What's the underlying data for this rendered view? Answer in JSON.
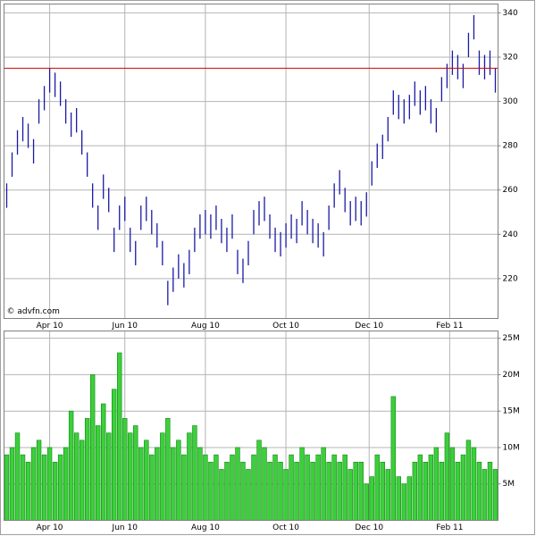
{
  "chart_data": [
    {
      "type": "hilo",
      "annotation": "© advfn.com",
      "color": "#1a1aa6",
      "reference_line": 315,
      "reference_color": "#d40000",
      "x": [
        0,
        1,
        2,
        3,
        4,
        5,
        6,
        7,
        8,
        9,
        10,
        11,
        12,
        13,
        14,
        15,
        16,
        17,
        18,
        19,
        20,
        21,
        22,
        23,
        24,
        25,
        26,
        27,
        28,
        29,
        30,
        31,
        32,
        33,
        34,
        35,
        36,
        37,
        38,
        39,
        40,
        41,
        42,
        43,
        44,
        45,
        46,
        47,
        48,
        49,
        50,
        51,
        52,
        53,
        54,
        55,
        56,
        57,
        58,
        59,
        60,
        61,
        62,
        63,
        64,
        65,
        66,
        67,
        68,
        69,
        70,
        71,
        72,
        73,
        74,
        75,
        76,
        77,
        78,
        79,
        80,
        81,
        82,
        83,
        84,
        85,
        86,
        87,
        88,
        89,
        90,
        91
      ],
      "high": [
        263,
        277,
        287,
        293,
        290,
        283,
        301,
        307,
        315,
        313,
        309,
        301,
        295,
        297,
        287,
        277,
        263,
        253,
        267,
        261,
        243,
        253,
        257,
        243,
        237,
        253,
        257,
        251,
        245,
        237,
        219,
        225,
        231,
        227,
        233,
        243,
        249,
        251,
        249,
        253,
        247,
        243,
        249,
        233,
        229,
        237,
        251,
        255,
        257,
        249,
        243,
        241,
        245,
        249,
        247,
        255,
        251,
        247,
        245,
        241,
        253,
        263,
        269,
        261,
        255,
        257,
        255,
        259,
        273,
        281,
        285,
        293,
        305,
        303,
        301,
        303,
        309,
        305,
        307,
        301,
        297,
        311,
        317,
        323,
        321,
        317,
        331,
        339,
        323,
        321,
        323,
        315
      ],
      "low": [
        252,
        266,
        276,
        282,
        279,
        272,
        290,
        296,
        304,
        302,
        298,
        290,
        284,
        286,
        276,
        266,
        252,
        242,
        256,
        250,
        232,
        242,
        246,
        232,
        226,
        242,
        246,
        240,
        234,
        226,
        208,
        214,
        220,
        216,
        222,
        232,
        238,
        240,
        238,
        242,
        236,
        232,
        238,
        222,
        218,
        226,
        240,
        244,
        246,
        238,
        232,
        230,
        234,
        238,
        236,
        244,
        240,
        236,
        234,
        230,
        242,
        252,
        258,
        250,
        244,
        246,
        244,
        248,
        262,
        270,
        274,
        282,
        294,
        292,
        290,
        292,
        298,
        294,
        296,
        290,
        286,
        300,
        306,
        312,
        310,
        306,
        320,
        328,
        312,
        310,
        312,
        304
      ],
      "xlim": [
        -0.5,
        91.5
      ],
      "xticks": [
        {
          "value": 8,
          "label": "Apr 10"
        },
        {
          "value": 22,
          "label": "Jun 10"
        },
        {
          "value": 37,
          "label": "Aug 10"
        },
        {
          "value": 52,
          "label": "Oct 10"
        },
        {
          "value": 67.5,
          "label": "Dec 10"
        },
        {
          "value": 82.5,
          "label": "Feb 11"
        }
      ],
      "ylim": [
        202,
        344
      ],
      "yticks": [
        220,
        240,
        260,
        280,
        300,
        320,
        340
      ],
      "grid": true
    },
    {
      "type": "bar",
      "color": "#3ccf3c",
      "edge_color": "#118811",
      "x": [
        0,
        1,
        2,
        3,
        4,
        5,
        6,
        7,
        8,
        9,
        10,
        11,
        12,
        13,
        14,
        15,
        16,
        17,
        18,
        19,
        20,
        21,
        22,
        23,
        24,
        25,
        26,
        27,
        28,
        29,
        30,
        31,
        32,
        33,
        34,
        35,
        36,
        37,
        38,
        39,
        40,
        41,
        42,
        43,
        44,
        45,
        46,
        47,
        48,
        49,
        50,
        51,
        52,
        53,
        54,
        55,
        56,
        57,
        58,
        59,
        60,
        61,
        62,
        63,
        64,
        65,
        66,
        67,
        68,
        69,
        70,
        71,
        72,
        73,
        74,
        75,
        76,
        77,
        78,
        79,
        80,
        81,
        82,
        83,
        84,
        85,
        86,
        87,
        88,
        89,
        90,
        91
      ],
      "values": [
        9,
        10,
        12,
        9,
        8,
        10,
        11,
        9,
        10,
        8,
        9,
        10,
        15,
        12,
        11,
        14,
        20,
        13,
        16,
        12,
        18,
        23,
        14,
        12,
        13,
        10,
        11,
        9,
        10,
        12,
        14,
        10,
        11,
        9,
        12,
        13,
        10,
        9,
        8,
        9,
        7,
        8,
        9,
        10,
        8,
        7,
        9,
        11,
        10,
        8,
        9,
        8,
        7,
        9,
        8,
        10,
        9,
        8,
        9,
        10,
        8,
        9,
        8,
        9,
        7,
        8,
        8,
        5,
        6,
        9,
        8,
        7,
        17,
        6,
        5,
        6,
        8,
        9,
        8,
        9,
        10,
        8,
        12,
        10,
        8,
        9,
        11,
        10,
        8,
        7,
        8,
        7
      ],
      "xlim": [
        -0.5,
        91.5
      ],
      "xticks": [
        {
          "value": 8,
          "label": "Apr 10"
        },
        {
          "value": 22,
          "label": "Jun 10"
        },
        {
          "value": 37,
          "label": "Aug 10"
        },
        {
          "value": 52,
          "label": "Oct 10"
        },
        {
          "value": 67.5,
          "label": "Dec 10"
        },
        {
          "value": 82.5,
          "label": "Feb 11"
        }
      ],
      "ylim": [
        0,
        26
      ],
      "yticks": [
        {
          "value": 5,
          "label": "5M"
        },
        {
          "value": 10,
          "label": "10M"
        },
        {
          "value": 15,
          "label": "15M"
        },
        {
          "value": 20,
          "label": "20M"
        },
        {
          "value": 25,
          "label": "25M"
        }
      ],
      "grid": true
    }
  ]
}
